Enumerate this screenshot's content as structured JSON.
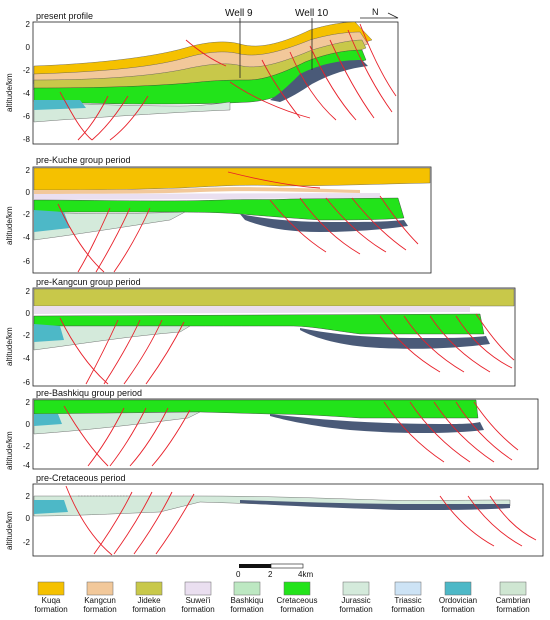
{
  "top_labels": {
    "well9": "Well 9",
    "well10": "Well 10",
    "north": "N"
  },
  "panels": [
    {
      "title": "present profile",
      "ylabel": "altitude/km",
      "yticks": [
        "2",
        "0",
        "-2",
        "-4",
        "-6",
        "-8"
      ]
    },
    {
      "title": "pre-Kuche group period",
      "ylabel": "altitude/km",
      "yticks": [
        "2",
        "0",
        "-2",
        "-4",
        "-6"
      ]
    },
    {
      "title": "pre-Kangcun group period",
      "ylabel": "altitude/km",
      "yticks": [
        "2",
        "0",
        "-2",
        "-4",
        "-6"
      ]
    },
    {
      "title": "pre-Bashkiqu group period",
      "ylabel": "altitude/km",
      "yticks": [
        "2",
        "0",
        "-2",
        "-4"
      ]
    },
    {
      "title": "pre-Cretaceous period",
      "ylabel": "altitude/km",
      "yticks": [
        "2",
        "0",
        "-2"
      ]
    }
  ],
  "scale_bar": {
    "labels": [
      "0",
      "2",
      "4km"
    ]
  },
  "legend": [
    {
      "line1": "Kuqa",
      "line2": "formation",
      "color": "#F5C100"
    },
    {
      "line1": "Kangcun",
      "line2": "formation",
      "color": "#F2C89A"
    },
    {
      "line1": "Jideke",
      "line2": "formation",
      "color": "#C8C84A"
    },
    {
      "line1": "Suwei'i",
      "line2": "formation",
      "color": "#EADFF0"
    },
    {
      "line1": "Bashkiqu",
      "line2": "formation",
      "color": "#BDE8C2"
    },
    {
      "line1": "Cretaceous",
      "line2": "formation",
      "color": "#22E31A"
    },
    {
      "line1": "Jurassic",
      "line2": "formation",
      "color": "#D4EADB"
    },
    {
      "line1": "Triassic",
      "line2": "formation",
      "color": "#CDE3F5"
    },
    {
      "line1": "Ordovician",
      "line2": "formation",
      "color": "#4DB8C7"
    },
    {
      "line1": "Cambrian",
      "line2": "formation",
      "color": "#CFE6D2"
    }
  ],
  "colors": {
    "fault": "#E8202A",
    "frame": "#222222",
    "layer_dark": "#4A5A78"
  }
}
